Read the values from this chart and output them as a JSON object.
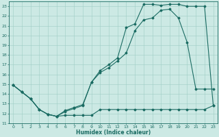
{
  "xlabel": "Humidex (Indice chaleur)",
  "xlim": [
    -0.5,
    23.5
  ],
  "ylim": [
    11,
    23.5
  ],
  "yticks": [
    11,
    12,
    13,
    14,
    15,
    16,
    17,
    18,
    19,
    20,
    21,
    22,
    23
  ],
  "xticks": [
    0,
    1,
    2,
    3,
    4,
    5,
    6,
    7,
    8,
    9,
    10,
    11,
    12,
    13,
    14,
    15,
    16,
    17,
    18,
    19,
    20,
    21,
    22,
    23
  ],
  "bg_color": "#cce9e4",
  "line_color": "#1a6b62",
  "line1_x": [
    0,
    1,
    2,
    3,
    4,
    5,
    6,
    7,
    8,
    9,
    10,
    11,
    12,
    13,
    14,
    15,
    16,
    17,
    18,
    19,
    20,
    21,
    22,
    23
  ],
  "line1_y": [
    14.9,
    14.2,
    13.5,
    12.4,
    11.9,
    11.7,
    11.8,
    11.8,
    11.8,
    11.8,
    12.4,
    12.4,
    12.4,
    12.4,
    12.4,
    12.4,
    12.4,
    12.4,
    12.4,
    12.4,
    12.4,
    12.4,
    12.4,
    12.8
  ],
  "line2_x": [
    0,
    1,
    2,
    3,
    4,
    5,
    6,
    7,
    8,
    9,
    10,
    11,
    12,
    13,
    14,
    15,
    16,
    17,
    18,
    19,
    20,
    21,
    22,
    23
  ],
  "line2_y": [
    14.9,
    14.2,
    13.5,
    12.4,
    11.9,
    11.7,
    12.2,
    12.5,
    12.8,
    15.2,
    16.2,
    16.7,
    17.4,
    18.2,
    20.5,
    21.6,
    21.8,
    22.6,
    22.7,
    21.8,
    19.3,
    14.5,
    14.5,
    14.5
  ],
  "line3_x": [
    0,
    1,
    2,
    3,
    4,
    5,
    6,
    7,
    8,
    9,
    10,
    11,
    12,
    13,
    14,
    15,
    16,
    17,
    18,
    19,
    20,
    21,
    22,
    23
  ],
  "line3_y": [
    14.9,
    14.2,
    13.5,
    12.4,
    11.9,
    11.7,
    12.3,
    12.6,
    12.9,
    15.2,
    16.4,
    17.0,
    17.7,
    20.8,
    21.2,
    23.2,
    23.2,
    23.1,
    23.2,
    23.2,
    23.0,
    23.0,
    23.0,
    12.8
  ]
}
